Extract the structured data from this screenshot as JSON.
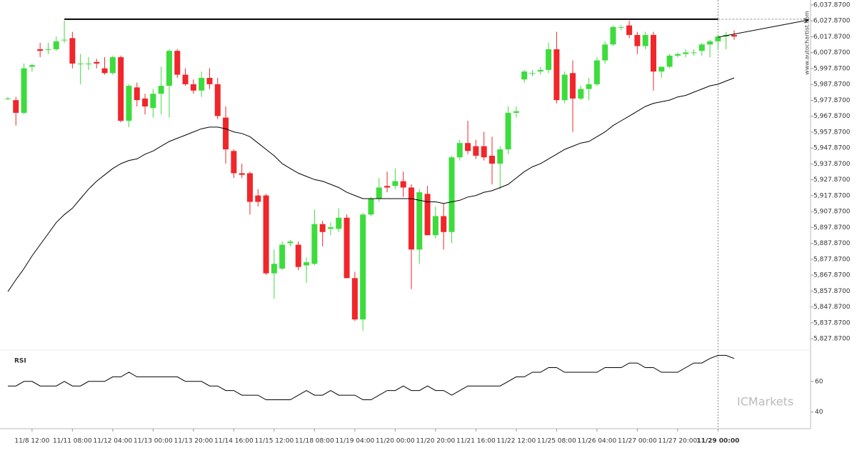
{
  "chart_data": {
    "type": "candlestick",
    "up_color": "#3ddc3d",
    "down_color": "#f0262a",
    "categories": [
      null,
      null,
      null,
      "11/8 12:00",
      null,
      null,
      null,
      null,
      "11/11 08:00",
      null,
      null,
      null,
      null,
      "11/12 04:00",
      null,
      null,
      null,
      null,
      "11/13 00:00",
      null,
      null,
      null,
      null,
      "11/13 20:00",
      null,
      null,
      null,
      null,
      "11/14 16:00",
      null,
      null,
      null,
      null,
      "11/15 12:00",
      null,
      null,
      null,
      null,
      "11/18 08:00",
      null,
      null,
      null,
      null,
      "11/19 04:00",
      null,
      null,
      null,
      null,
      "11/20 00:00",
      null,
      null,
      null,
      null,
      "11/20 20:00",
      null,
      null,
      null,
      null,
      "11/21 16:00",
      null,
      null,
      null,
      null,
      "11/22 12:00",
      null,
      null,
      null,
      null,
      "11/25 08:00",
      null,
      null,
      null,
      null,
      "11/26 04:00",
      null,
      null,
      null,
      null,
      "11/27 00:00",
      null,
      null,
      null,
      null,
      "11/27 20:00",
      null,
      null,
      null,
      null,
      "11/29 00:00",
      null,
      null
    ],
    "open": [
      5979,
      5978,
      5970,
      5999,
      6010,
      6010,
      6010,
      6016,
      6017,
      6001,
      6001,
      6002,
      5998,
      5995,
      6005,
      5965,
      5986,
      5979,
      5973,
      5982,
      5987,
      6009,
      5994,
      5988,
      5984,
      5992,
      5988,
      5967,
      5946,
      5932,
      5932,
      5918,
      5918,
      5869,
      5872,
      5888,
      5887,
      5874,
      5875,
      5900,
      5897,
      5897,
      5904,
      5866,
      5840,
      5906,
      5916,
      5924,
      5924,
      5927,
      5923,
      5884,
      5919,
      5893,
      5905,
      5895,
      5942,
      5951,
      5949,
      5949,
      5943,
      5938,
      5947,
      5970,
      5991,
      5995,
      5996,
      5997,
      6010,
      5978,
      5995,
      5979,
      5985,
      5988,
      6003,
      6013,
      6024,
      6025,
      6019,
      6012,
      6019,
      5996,
      5999,
      6006,
      6007,
      6008,
      6009,
      6013,
      6015,
      6018,
      6019
    ],
    "high": [
      5980,
      5980,
      6001,
      6001,
      6014,
      6014,
      6018,
      6028,
      6021,
      6007,
      6005,
      6004,
      6005,
      6006,
      6006,
      5988,
      5989,
      5982,
      5985,
      5999,
      6010,
      6010,
      5998,
      5991,
      5996,
      5998,
      5992,
      5974,
      5947,
      5938,
      5933,
      5922,
      5919,
      5884,
      5889,
      5890,
      5889,
      5879,
      5909,
      5902,
      5901,
      5910,
      5906,
      5870,
      5907,
      5917,
      5929,
      5933,
      5935,
      5933,
      5925,
      5922,
      5924,
      5911,
      5913,
      5943,
      5953,
      5965,
      5953,
      5958,
      5955,
      5949,
      5974,
      5974,
      5997,
      5997,
      5999,
      6014,
      6021,
      5996,
      6003,
      5987,
      5992,
      6005,
      6015,
      6025,
      6025,
      6028,
      6021,
      6021,
      6021,
      5999,
      6007,
      6008,
      6010,
      6010,
      6014,
      6016,
      6019,
      6021,
      6022
    ],
    "low": [
      5978,
      5962,
      5969,
      5996,
      6005,
      6007,
      6009,
      6014,
      5998,
      5988,
      5997,
      5998,
      5994,
      5994,
      5964,
      5961,
      5974,
      5969,
      5967,
      5969,
      5967,
      5992,
      5987,
      5982,
      5980,
      5985,
      5966,
      5938,
      5929,
      5929,
      5906,
      5911,
      5868,
      5853,
      5871,
      5886,
      5871,
      5863,
      5874,
      5886,
      5893,
      5895,
      5866,
      5839,
      5833,
      5905,
      5914,
      5920,
      5922,
      5917,
      5859,
      5875,
      5893,
      5891,
      5884,
      5888,
      5940,
      5944,
      5941,
      5940,
      5925,
      5922,
      5944,
      5967,
      5989,
      5993,
      5994,
      5995,
      5976,
      5976,
      5958,
      5978,
      5978,
      5987,
      6001,
      6012,
      6022,
      6017,
      6007,
      6010,
      5984,
      5992,
      5998,
      6005,
      6005,
      6006,
      6006,
      6005,
      6010,
      6010,
      6016
    ],
    "close": [
      5979,
      5970,
      5998,
      6000,
      6009,
      6010,
      6015,
      6016,
      6001,
      6001,
      6001,
      6001,
      5995,
      6005,
      5965,
      5987,
      5978,
      5974,
      5982,
      5987,
      6009,
      5994,
      5988,
      5984,
      5992,
      5988,
      5968,
      5947,
      5932,
      5931,
      5914,
      5914,
      5869,
      5875,
      5887,
      5889,
      5873,
      5876,
      5900,
      5895,
      5898,
      5904,
      5866,
      5840,
      5906,
      5916,
      5923,
      5923,
      5927,
      5923,
      5884,
      5920,
      5893,
      5905,
      5895,
      5942,
      5951,
      5946,
      5943,
      5942,
      5938,
      5947,
      5970,
      5971,
      5996,
      5995,
      5997,
      6010,
      5978,
      5994,
      5979,
      5985,
      5988,
      6003,
      6013,
      6024,
      6024,
      6019,
      6012,
      6019,
      5996,
      5999,
      6006,
      6007,
      6008,
      6008,
      6013,
      6015,
      6018,
      6019,
      6018
    ],
    "moving_average": {
      "color": "#000000",
      "values": [
        5857.5,
        5865,
        5872,
        5880,
        5887,
        5894,
        5901,
        5906,
        5910,
        5916,
        5922,
        5927,
        5931,
        5935,
        5938,
        5940,
        5941,
        5944,
        5946,
        5949,
        5952,
        5954,
        5956,
        5958,
        5960,
        5961,
        5961,
        5960,
        5958,
        5957,
        5955,
        5951,
        5947,
        5943,
        5938,
        5935,
        5932,
        5930,
        5928,
        5927,
        5925,
        5923,
        5920,
        5918,
        5916,
        5916,
        5916,
        5916,
        5916,
        5916,
        5916,
        5915,
        5914,
        5914,
        5913,
        5914,
        5915,
        5917,
        5918,
        5920,
        5921,
        5923,
        5925,
        5929,
        5933,
        5936,
        5938,
        5941,
        5944,
        5947,
        5949,
        5951,
        5952,
        5955,
        5958,
        5962,
        5965,
        5968,
        5971,
        5974,
        5976,
        5977,
        5978,
        5980,
        5981,
        5983,
        5985,
        5987,
        5988,
        5990,
        5992
      ]
    },
    "resistance": {
      "value": 6028.9,
      "start": 7,
      "end": 88
    },
    "projection": {
      "x": [
        88,
        99.2
      ],
      "y": [
        6017.6,
        6028.4
      ]
    },
    "marker_index": 88,
    "xlim": [
      -0.97,
      99.47
    ],
    "ylim": [
      5820.7,
      6041
    ],
    "yticks": [
      {
        "value": 6037.87,
        "label": "6,037.8700"
      },
      {
        "value": 6027.87,
        "label": "6,027.8700"
      },
      {
        "value": 6017.87,
        "label": "6,017.8700"
      },
      {
        "value": 6007.87,
        "label": "6,007.8700"
      },
      {
        "value": 5997.87,
        "label": "5,997.8700"
      },
      {
        "value": 5987.87,
        "label": "5,987.8700"
      },
      {
        "value": 5977.87,
        "label": "5,977.8700"
      },
      {
        "value": 5967.87,
        "label": "5,967.8700"
      },
      {
        "value": 5957.87,
        "label": "5,957.8700"
      },
      {
        "value": 5947.87,
        "label": "5,947.8700"
      },
      {
        "value": 5937.87,
        "label": "5,937.8700"
      },
      {
        "value": 5927.87,
        "label": "5,927.8700"
      },
      {
        "value": 5917.87,
        "label": "5,917.8700"
      },
      {
        "value": 5907.87,
        "label": "5,907.8700"
      },
      {
        "value": 5897.87,
        "label": "5,897.8700"
      },
      {
        "value": 5887.87,
        "label": "5,887.8700"
      },
      {
        "value": 5877.87,
        "label": "5,877.8700"
      },
      {
        "value": 5867.87,
        "label": "5,867.8700"
      },
      {
        "value": 5857.87,
        "label": "5,857.8700"
      },
      {
        "value": 5847.87,
        "label": "5,847.8700"
      },
      {
        "value": 5837.87,
        "label": "5,837.8700"
      },
      {
        "value": 5827.87,
        "label": "5,827.8700"
      }
    ],
    "rsi": {
      "label": "RSI",
      "ylim": [
        30,
        80
      ],
      "yticks": [
        40,
        60
      ],
      "values": [
        57,
        57,
        60,
        60,
        57,
        57,
        57,
        60,
        57,
        57,
        60,
        60,
        60,
        63,
        63,
        66,
        63,
        63,
        63,
        63,
        63,
        63,
        60,
        60,
        60,
        57,
        57,
        54,
        54,
        51,
        51,
        51,
        48,
        48,
        48,
        48,
        51,
        54,
        51,
        51,
        54,
        51,
        51,
        51,
        48,
        48,
        51,
        54,
        54,
        57,
        54,
        54,
        57,
        54,
        54,
        51,
        54,
        57,
        57,
        57,
        57,
        57,
        60,
        63,
        63,
        66,
        66,
        69,
        69,
        66,
        66,
        66,
        66,
        66,
        69,
        69,
        69,
        72,
        72,
        69,
        69,
        66,
        66,
        66,
        69,
        72,
        72,
        75,
        77,
        77,
        75
      ]
    },
    "watermark": "www.autochartist.com",
    "logo": "ICMarkets"
  }
}
